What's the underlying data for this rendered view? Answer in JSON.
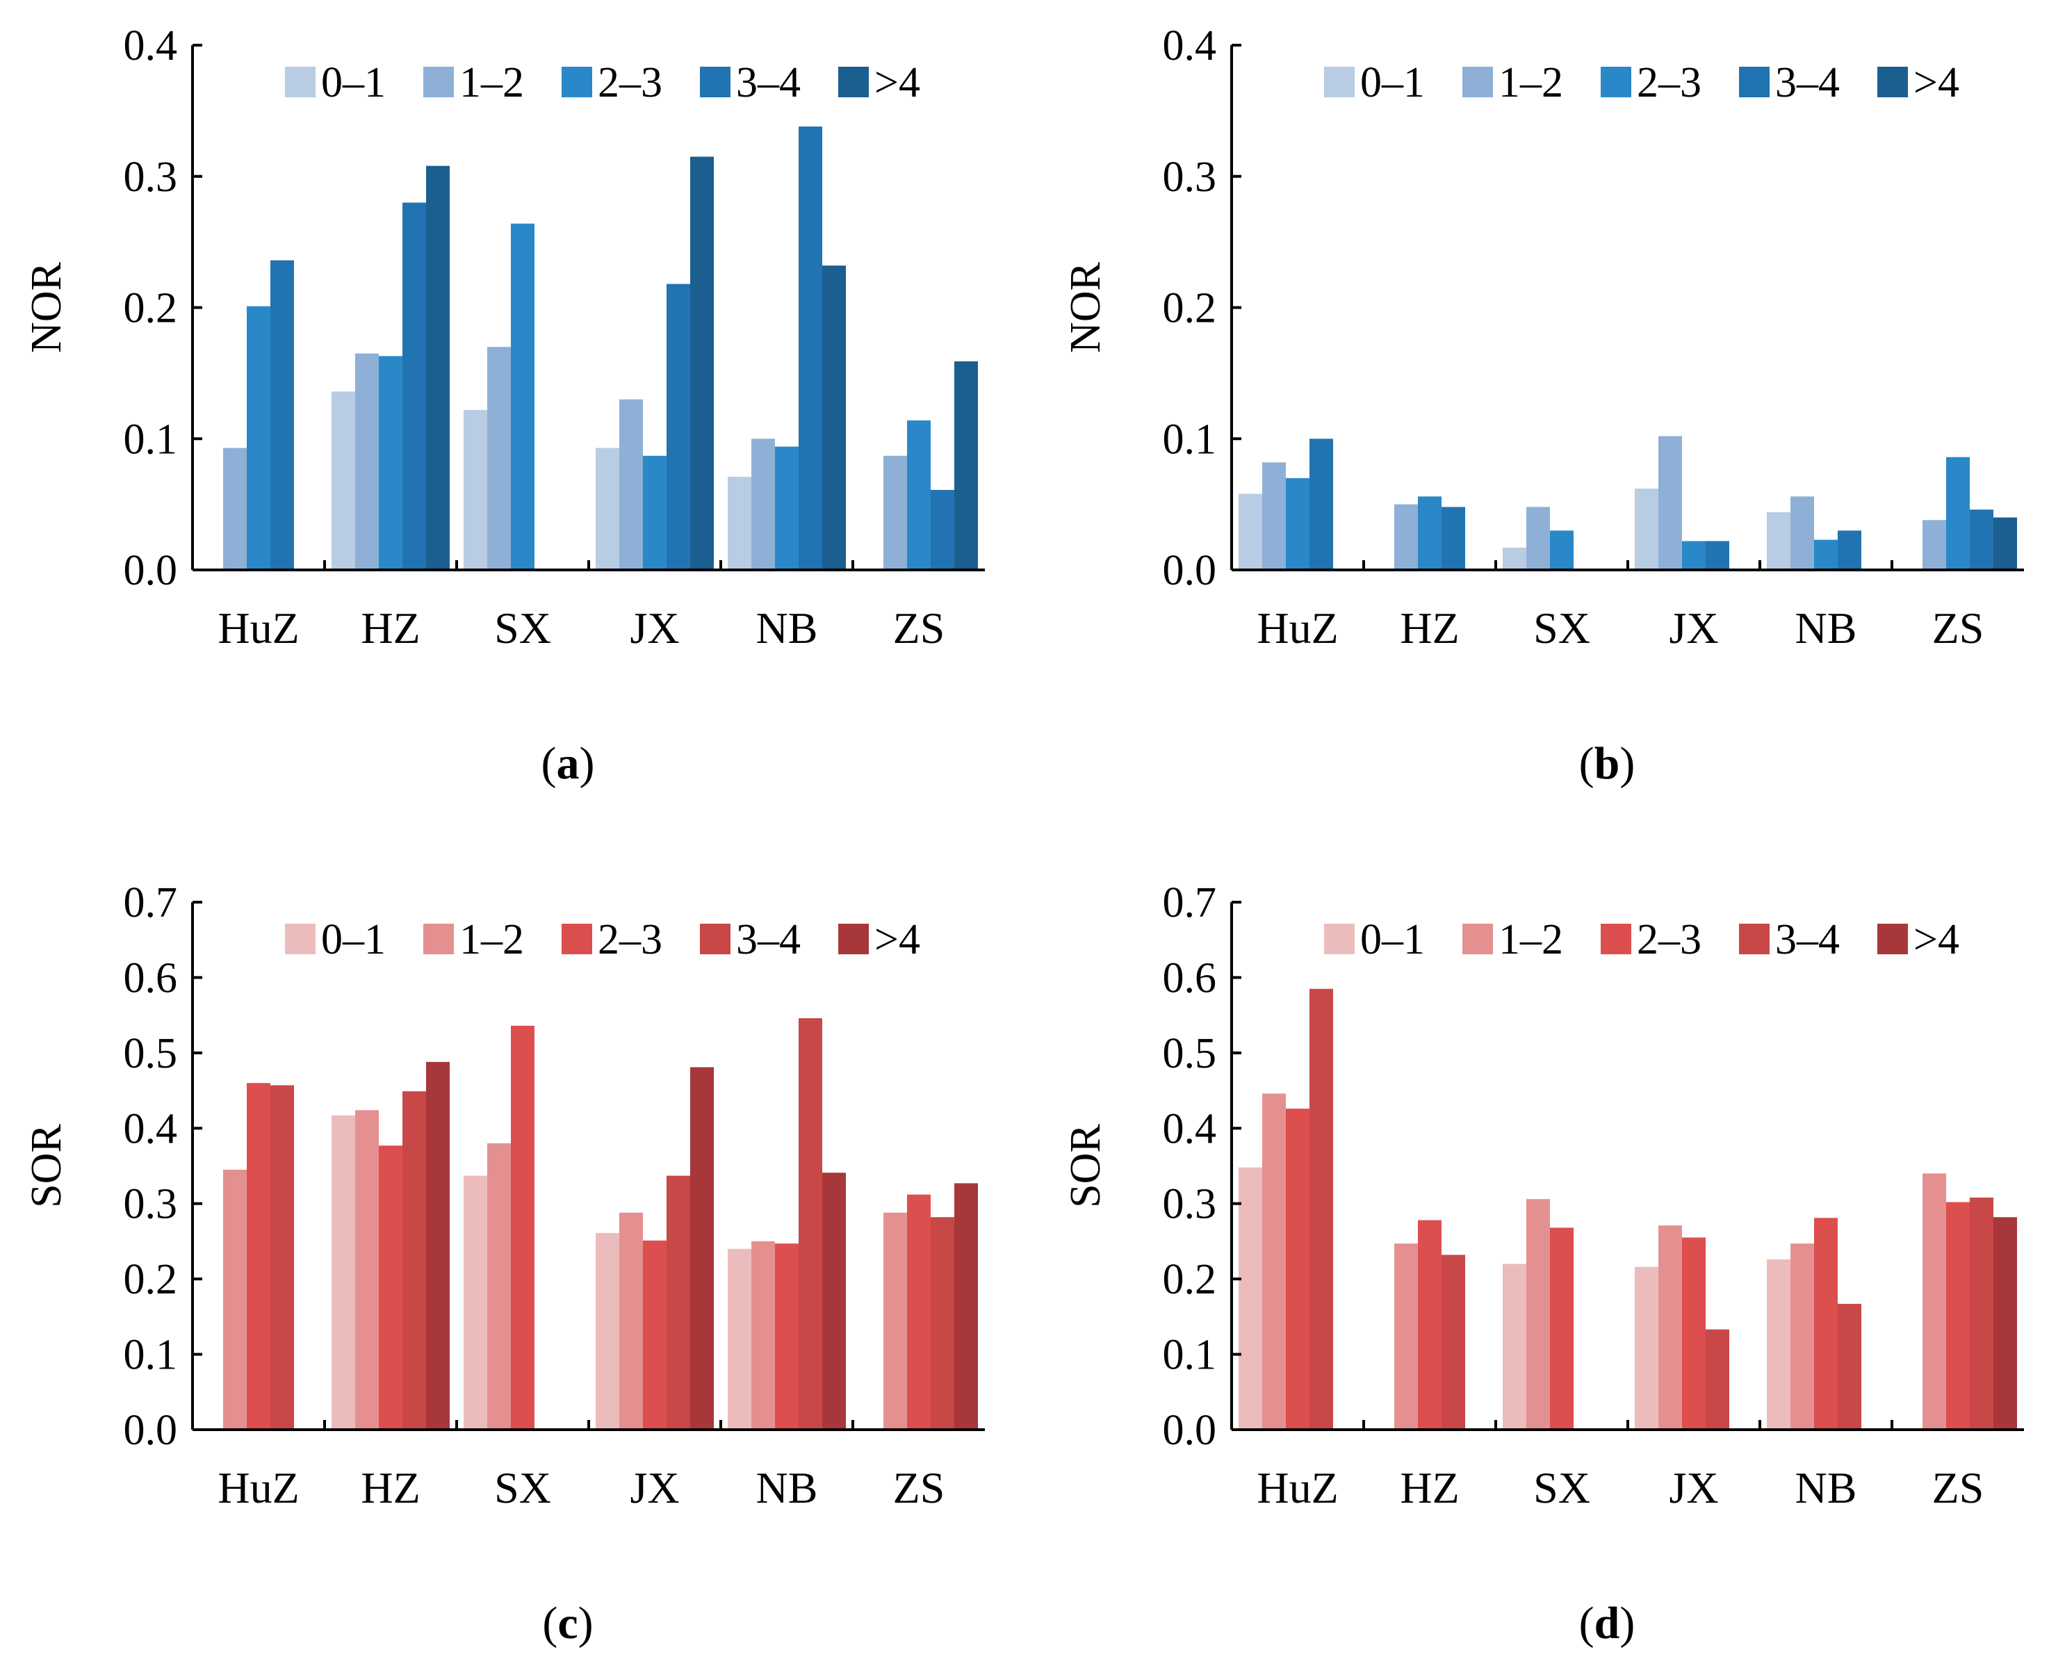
{
  "figure": {
    "series_colors_nor": [
      "#b8cce4",
      "#8eb0d6",
      "#2a88c8",
      "#2273b1",
      "#1b5f91"
    ],
    "series_colors_sor": [
      "#ecbcbc",
      "#e59090",
      "#dd4e4e",
      "#c84747",
      "#a8373a"
    ]
  },
  "chart_data": [
    {
      "type": "bar",
      "panel_label": "(a)",
      "ylabel": "NOR",
      "ylim": [
        0,
        0.4
      ],
      "yticks": [
        "0.0",
        "0.1",
        "0.2",
        "0.3",
        "0.4"
      ],
      "categories": [
        "HuZ",
        "HZ",
        "SX",
        "JX",
        "NB",
        "ZS"
      ],
      "legend_position": "top-right",
      "series": [
        {
          "name": "0–1",
          "values": [
            null,
            0.136,
            0.122,
            0.093,
            0.071,
            null
          ]
        },
        {
          "name": "1–2",
          "values": [
            0.093,
            0.165,
            0.17,
            0.13,
            0.1,
            0.087
          ]
        },
        {
          "name": "2–3",
          "values": [
            0.201,
            0.163,
            0.264,
            0.087,
            0.094,
            0.114
          ]
        },
        {
          "name": "3–4",
          "values": [
            0.236,
            0.28,
            null,
            0.218,
            0.338,
            0.061
          ]
        },
        {
          "name": ">4",
          "values": [
            null,
            0.308,
            null,
            0.315,
            0.232,
            0.159
          ]
        }
      ]
    },
    {
      "type": "bar",
      "panel_label": "(b)",
      "ylabel": "NOR",
      "ylim": [
        0,
        0.4
      ],
      "yticks": [
        "0.0",
        "0.1",
        "0.2",
        "0.3",
        "0.4"
      ],
      "categories": [
        "HuZ",
        "HZ",
        "SX",
        "JX",
        "NB",
        "ZS"
      ],
      "legend_position": "top-right",
      "series": [
        {
          "name": "0–1",
          "values": [
            0.058,
            null,
            0.017,
            0.062,
            0.044,
            null
          ]
        },
        {
          "name": "1–2",
          "values": [
            0.082,
            0.05,
            0.048,
            0.102,
            0.056,
            0.038
          ]
        },
        {
          "name": "2–3",
          "values": [
            0.07,
            0.056,
            0.03,
            0.022,
            0.023,
            0.086
          ]
        },
        {
          "name": "3–4",
          "values": [
            0.1,
            0.048,
            null,
            0.022,
            0.03,
            0.046
          ]
        },
        {
          "name": ">4",
          "values": [
            null,
            null,
            null,
            null,
            null,
            0.04
          ]
        }
      ]
    },
    {
      "type": "bar",
      "panel_label": "(c)",
      "ylabel": "SOR",
      "ylim": [
        0,
        0.7
      ],
      "yticks": [
        "0.0",
        "0.1",
        "0.2",
        "0.3",
        "0.4",
        "0.5",
        "0.6",
        "0.7"
      ],
      "categories": [
        "HuZ",
        "HZ",
        "SX",
        "JX",
        "NB",
        "ZS"
      ],
      "legend_position": "top-right",
      "series": [
        {
          "name": "0–1",
          "values": [
            null,
            0.417,
            0.337,
            0.261,
            0.24,
            null
          ]
        },
        {
          "name": "1–2",
          "values": [
            0.345,
            0.424,
            0.38,
            0.288,
            0.25,
            0.288
          ]
        },
        {
          "name": "2–3",
          "values": [
            0.46,
            0.377,
            0.536,
            0.251,
            0.247,
            0.312
          ]
        },
        {
          "name": "3–4",
          "values": [
            0.457,
            0.449,
            null,
            0.337,
            0.546,
            0.282
          ]
        },
        {
          "name": ">4",
          "values": [
            null,
            0.488,
            null,
            0.481,
            0.341,
            0.327
          ]
        }
      ]
    },
    {
      "type": "bar",
      "panel_label": "(d)",
      "ylabel": "SOR",
      "ylim": [
        0,
        0.7
      ],
      "yticks": [
        "0.0",
        "0.1",
        "0.2",
        "0.3",
        "0.4",
        "0.5",
        "0.6",
        "0.7"
      ],
      "categories": [
        "HuZ",
        "HZ",
        "SX",
        "JX",
        "NB",
        "ZS"
      ],
      "legend_position": "top-right",
      "series": [
        {
          "name": "0–1",
          "values": [
            0.348,
            null,
            0.22,
            0.216,
            0.226,
            null
          ]
        },
        {
          "name": "1–2",
          "values": [
            0.446,
            0.247,
            0.306,
            0.271,
            0.247,
            0.34
          ]
        },
        {
          "name": "2–3",
          "values": [
            0.426,
            0.278,
            0.268,
            0.255,
            0.281,
            0.302
          ]
        },
        {
          "name": "3–4",
          "values": [
            0.585,
            0.232,
            null,
            0.133,
            0.167,
            0.308
          ]
        },
        {
          "name": ">4",
          "values": [
            null,
            null,
            null,
            null,
            null,
            0.282
          ]
        }
      ]
    }
  ]
}
